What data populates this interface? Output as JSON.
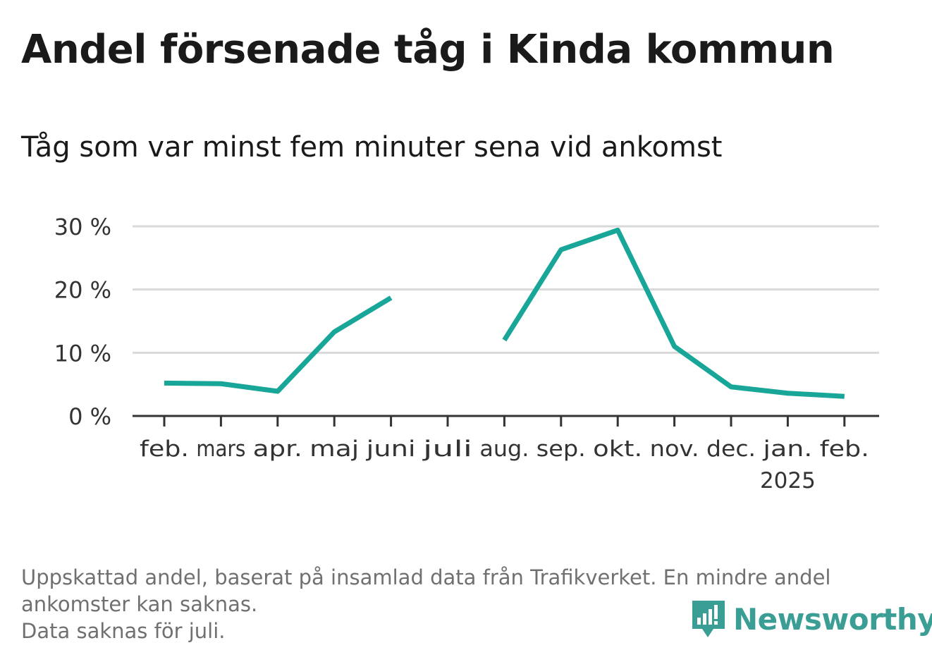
{
  "title": "Andel försenade tåg i Kinda kommun",
  "subtitle": "Tåg som var minst fem minuter sena vid ankomst",
  "chart_data": {
    "type": "line",
    "categories": [
      "feb.",
      "mars",
      "apr.",
      "maj",
      "juni",
      "juli",
      "aug.",
      "sep.",
      "okt.",
      "nov.",
      "dec.",
      "jan.",
      "feb."
    ],
    "category_sublabels": [
      "",
      "",
      "",
      "",
      "",
      "",
      "",
      "",
      "",
      "",
      "",
      "2025",
      ""
    ],
    "series": [
      {
        "values": [
          5.2,
          5.1,
          3.9,
          13.3,
          18.7,
          null,
          12.0,
          26.3,
          29.4,
          11.0,
          4.6,
          3.6,
          3.1
        ]
      }
    ],
    "yticks": [
      0,
      10,
      20,
      30
    ],
    "ytick_labels": [
      "0 %",
      "10 %",
      "20 %",
      "30 %"
    ],
    "ylim": [
      0,
      30
    ],
    "grid": true,
    "line_color": "#17a697"
  },
  "footnote": {
    "line1": "Uppskattad andel, baserat på insamlad data från Trafikverket. En mindre andel",
    "line2": "ankomster kan saknas.",
    "line3": "Data saknas för juli."
  },
  "logo": {
    "text": "Newsworthy",
    "icon": "bar-chart-speech-icon"
  }
}
